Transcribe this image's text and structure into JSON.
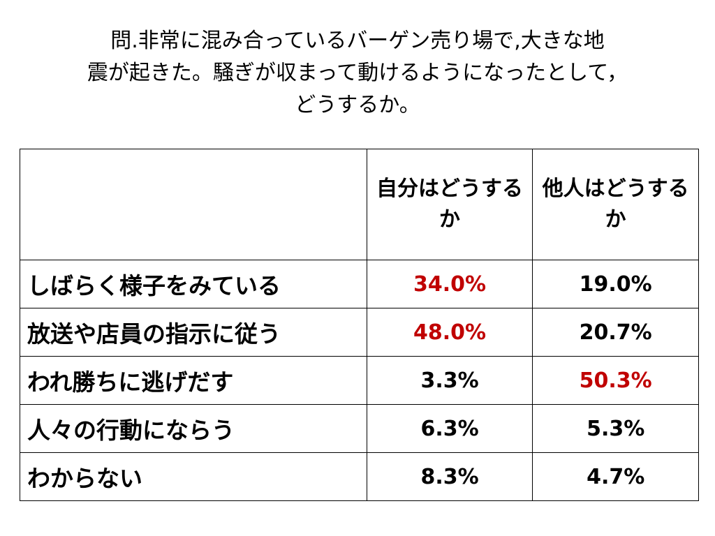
{
  "title": {
    "lines": [
      "問.非常に混み合っているバーゲン売り場で,大きな地",
      "震が起きた。騒ぎが収まって動けるようになったとして，",
      "どうするか。"
    ]
  },
  "table": {
    "header": [
      "",
      "自分はどうするか",
      "他人はどうするか"
    ],
    "rows": [
      {
        "label": "しばらく様子をみている",
        "cells": [
          "34.0%",
          "19.0%"
        ],
        "colors": [
          "#c00000",
          "#000000"
        ]
      },
      {
        "label": "放送や店員の指示に従う",
        "cells": [
          "48.0%",
          "20.7%"
        ],
        "colors": [
          "#c00000",
          "#000000"
        ]
      },
      {
        "label": "われ勝ちに逃げだす",
        "cells": [
          "3.3%",
          "50.3%"
        ],
        "colors": [
          "#000000",
          "#c00000"
        ]
      },
      {
        "label": "人々の行動にならう",
        "cells": [
          "6.3%",
          "5.3%"
        ],
        "colors": [
          "#000000",
          "#000000"
        ]
      },
      {
        "label": "わからない",
        "cells": [
          "8.3%",
          "4.7%"
        ],
        "colors": [
          "#000000",
          "#000000"
        ]
      }
    ]
  }
}
